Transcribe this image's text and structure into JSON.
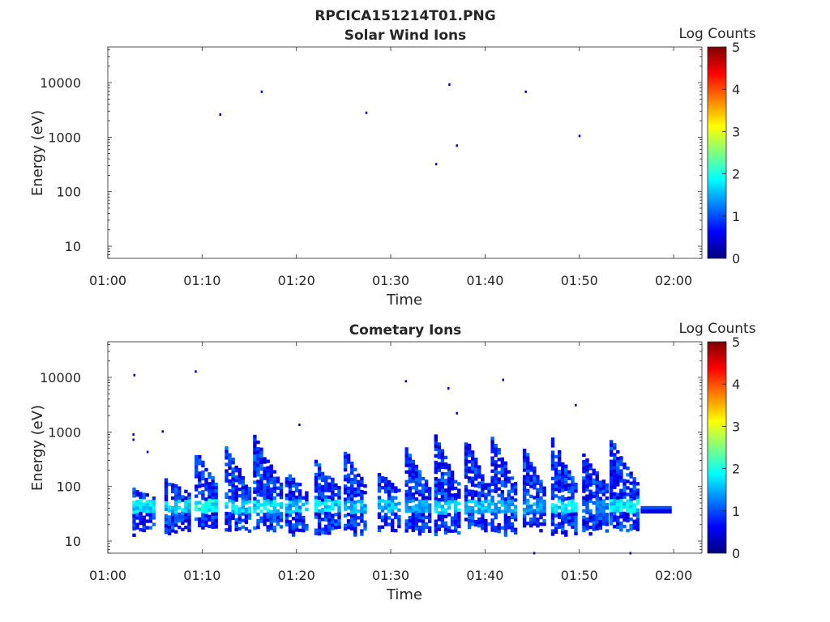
{
  "figure_title": "RPCICA151214T01.PNG",
  "colormap_stops": [
    "#00007f",
    "#0000ff",
    "#007fff",
    "#00ffff",
    "#7fff7f",
    "#ffff00",
    "#ff7f00",
    "#ff0000",
    "#7f0000"
  ],
  "chart_data": [
    {
      "type": "heatmap",
      "title": "Solar Wind Ions",
      "xlabel": "Time",
      "ylabel": "Energy (eV)",
      "x_range": [
        "01:00",
        "02:03"
      ],
      "x_ticks": [
        "01:00",
        "01:10",
        "01:20",
        "01:30",
        "01:40",
        "01:50",
        "02:00"
      ],
      "y_scale": "log",
      "y_range": [
        6,
        45000
      ],
      "y_ticks": [
        "10",
        "100",
        "1000",
        "10000"
      ],
      "colorbar_label": "Log Counts",
      "colorbar_range": [
        0,
        5
      ],
      "colorbar_ticks": [
        "0",
        "1",
        "2",
        "3",
        "4",
        "5"
      ],
      "grid": false,
      "points": [
        {
          "t": 11.9,
          "e": 2600,
          "c": 0.3
        },
        {
          "t": 16.3,
          "e": 6800,
          "c": 0.3
        },
        {
          "t": 27.4,
          "e": 2800,
          "c": 0.3
        },
        {
          "t": 34.8,
          "e": 320,
          "c": 0.3
        },
        {
          "t": 36.2,
          "e": 9200,
          "c": 0.3
        },
        {
          "t": 37.0,
          "e": 700,
          "c": 0.3
        },
        {
          "t": 44.3,
          "e": 6800,
          "c": 0.3
        },
        {
          "t": 50.0,
          "e": 1050,
          "c": 0.3
        }
      ]
    },
    {
      "type": "heatmap",
      "title": "Cometary Ions",
      "xlabel": "Time",
      "ylabel": "Energy (eV)",
      "x_range": [
        "01:00",
        "02:03"
      ],
      "x_ticks": [
        "01:00",
        "01:10",
        "01:20",
        "01:30",
        "01:40",
        "01:50",
        "02:00"
      ],
      "y_scale": "log",
      "y_range": [
        6,
        45000
      ],
      "y_ticks": [
        "10",
        "100",
        "1000",
        "10000"
      ],
      "colorbar_label": "Log Counts",
      "colorbar_range": [
        0,
        5
      ],
      "colorbar_ticks": [
        "0",
        "1",
        "2",
        "3",
        "4",
        "5"
      ],
      "grid": false,
      "bursts": [
        {
          "t0": 2.6,
          "t1": 4.7,
          "emin": 12,
          "emax": 85,
          "peak": 1.9
        },
        {
          "t0": 6.0,
          "t1": 8.6,
          "emin": 12,
          "emax": 130,
          "peak": 1.7
        },
        {
          "t0": 9.2,
          "t1": 11.6,
          "emin": 14,
          "emax": 460,
          "peak": 2.0
        },
        {
          "t0": 12.4,
          "t1": 14.9,
          "emin": 12,
          "emax": 500,
          "peak": 1.8
        },
        {
          "t0": 15.4,
          "t1": 18.3,
          "emin": 14,
          "emax": 820,
          "peak": 1.9
        },
        {
          "t0": 18.8,
          "t1": 21.0,
          "emin": 12,
          "emax": 180,
          "peak": 1.6
        },
        {
          "t0": 21.9,
          "t1": 24.6,
          "emin": 12,
          "emax": 290,
          "peak": 1.8
        },
        {
          "t0": 25.0,
          "t1": 27.3,
          "emin": 12,
          "emax": 470,
          "peak": 1.6
        },
        {
          "t0": 28.6,
          "t1": 31.0,
          "emin": 14,
          "emax": 170,
          "peak": 1.6
        },
        {
          "t0": 31.5,
          "t1": 34.0,
          "emin": 12,
          "emax": 470,
          "peak": 1.5
        },
        {
          "t0": 34.6,
          "t1": 37.1,
          "emin": 12,
          "emax": 820,
          "peak": 1.8
        },
        {
          "t0": 37.8,
          "t1": 40.3,
          "emin": 14,
          "emax": 700,
          "peak": 1.7
        },
        {
          "t0": 40.6,
          "t1": 43.2,
          "emin": 12,
          "emax": 770,
          "peak": 1.5
        },
        {
          "t0": 44.0,
          "t1": 46.2,
          "emin": 14,
          "emax": 470,
          "peak": 1.5
        },
        {
          "t0": 47.0,
          "t1": 49.6,
          "emin": 12,
          "emax": 700,
          "peak": 1.9
        },
        {
          "t0": 50.3,
          "t1": 53.0,
          "emin": 12,
          "emax": 380,
          "peak": 1.3
        },
        {
          "t0": 53.2,
          "t1": 56.3,
          "emin": 14,
          "emax": 680,
          "peak": 1.9
        }
      ],
      "points": [
        {
          "t": 2.8,
          "e": 11000,
          "c": 0.3
        },
        {
          "t": 9.3,
          "e": 12800,
          "c": 0.3
        },
        {
          "t": 2.7,
          "e": 900,
          "c": 0.3
        },
        {
          "t": 2.7,
          "e": 720,
          "c": 0.3
        },
        {
          "t": 5.8,
          "e": 1020,
          "c": 0.3
        },
        {
          "t": 4.2,
          "e": 430,
          "c": 0.3
        },
        {
          "t": 31.6,
          "e": 8500,
          "c": 0.3
        },
        {
          "t": 36.1,
          "e": 6300,
          "c": 0.3
        },
        {
          "t": 41.9,
          "e": 9000,
          "c": 0.3
        },
        {
          "t": 49.6,
          "e": 3100,
          "c": 0.3
        },
        {
          "t": 37.0,
          "e": 2200,
          "c": 0.3
        },
        {
          "t": 20.3,
          "e": 1350,
          "c": 0.3
        },
        {
          "t": 45.2,
          "e": 6,
          "c": 0.3
        },
        {
          "t": 55.4,
          "e": 6,
          "c": 0.3
        }
      ],
      "bands": [
        {
          "t0": 56.5,
          "t1": 59.8,
          "e": 40,
          "c": 1.0
        },
        {
          "t0": 56.5,
          "t1": 59.8,
          "e": 35,
          "c": 0.5
        }
      ]
    }
  ]
}
